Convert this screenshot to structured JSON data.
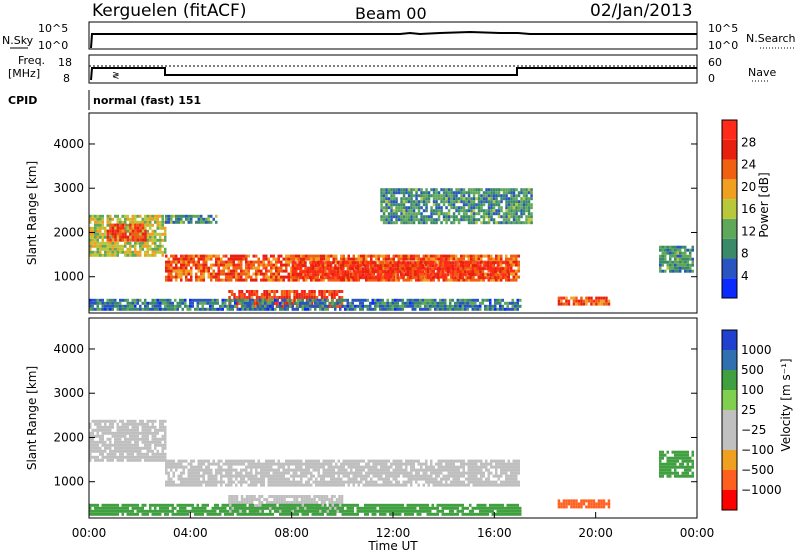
{
  "header": {
    "station": "Kerguelen (fitACF)",
    "beam": "Beam 00",
    "date": "02/Jan/2013"
  },
  "noise_panel": {
    "left_label": "N.Sky",
    "right_label": "N.Search",
    "y_ticks": [
      "10^5",
      "10^0"
    ]
  },
  "freq_panel": {
    "left_label_line1": "Freq.",
    "left_label_line2": "[MHz]",
    "left_ticks": [
      "18",
      "8"
    ],
    "right_ticks": [
      "60",
      "0"
    ],
    "right_label": "Nave"
  },
  "cpid_panel": {
    "label": "CPID",
    "value": "normal (fast) 151"
  },
  "colors": {
    "power": [
      "#0a2aff",
      "#2a55c0",
      "#3a8a6a",
      "#5fa85a",
      "#b8c83a",
      "#f0a020",
      "#f06010",
      "#e82010",
      "#ff2a1a"
    ],
    "velocity": [
      "#ff0000",
      "#ff6020",
      "#f0a020",
      "#c0c0c0",
      "#c0c0c0",
      "#80d050",
      "#40a040",
      "#3070b0",
      "#2040d0"
    ],
    "ground_scatter": "#bfbfbf"
  },
  "chart_data": [
    {
      "type": "heatmap",
      "name": "power_panel",
      "xlabel": "",
      "ylabel": "Slant Range [km]",
      "y_ticks": [
        "1000",
        "2000",
        "3000",
        "4000"
      ],
      "y_tick_values": [
        1000,
        2000,
        3000,
        4000
      ],
      "ylim": [
        180,
        4700
      ],
      "xlim": [
        0,
        24
      ],
      "colorbar_label": "Power [dB]",
      "colorbar_ticks": [
        "4",
        "8",
        "12",
        "16",
        "20",
        "24",
        "28"
      ],
      "colorbar_tick_values": [
        4,
        8,
        12,
        16,
        20,
        24,
        28
      ],
      "colorbar_range": [
        0,
        32
      ],
      "echo_regions": [
        {
          "t": [
            0.0,
            3.0
          ],
          "range_km": [
            1500,
            2400
          ],
          "power_db": 16
        },
        {
          "t": [
            0.7,
            2.2
          ],
          "range_km": [
            1800,
            2200
          ],
          "power_db": 26
        },
        {
          "t": [
            3.0,
            17.0
          ],
          "range_km": [
            900,
            1500
          ],
          "power_db": 24
        },
        {
          "t": [
            8.0,
            16.5
          ],
          "range_km": [
            1000,
            1350
          ],
          "power_db": 28
        },
        {
          "t": [
            5.5,
            10.0
          ],
          "range_km": [
            300,
            700
          ],
          "power_db": 26
        },
        {
          "t": [
            0.0,
            17.0
          ],
          "range_km": [
            250,
            500
          ],
          "power_db": 8
        },
        {
          "t": [
            3.0,
            5.0
          ],
          "range_km": [
            2200,
            2400
          ],
          "power_db": 10
        },
        {
          "t": [
            11.5,
            17.5
          ],
          "range_km": [
            2200,
            3000
          ],
          "power_db": 10
        },
        {
          "t": [
            18.5,
            20.5
          ],
          "range_km": [
            400,
            550
          ],
          "power_db": 24
        },
        {
          "t": [
            22.5,
            23.8
          ],
          "range_km": [
            1100,
            1700
          ],
          "power_db": 10
        }
      ]
    },
    {
      "type": "heatmap",
      "name": "velocity_panel",
      "xlabel": "Time UT",
      "ylabel": "Slant Range [km]",
      "x_ticks": [
        "00:00",
        "04:00",
        "08:00",
        "12:00",
        "16:00",
        "20:00",
        "00:00"
      ],
      "x_tick_values": [
        0,
        4,
        8,
        12,
        16,
        20,
        24
      ],
      "y_ticks": [
        "1000",
        "2000",
        "3000",
        "4000"
      ],
      "y_tick_values": [
        1000,
        2000,
        3000,
        4000
      ],
      "ylim": [
        180,
        4700
      ],
      "xlim": [
        0,
        24
      ],
      "colorbar_label": "Velocity [m s⁻¹]",
      "colorbar_ticks": [
        "1000",
        "500",
        "100",
        "25",
        "−25",
        "−100",
        "−500",
        "−1000"
      ],
      "echo_regions": [
        {
          "t": [
            0.0,
            3.0
          ],
          "range_km": [
            1500,
            2400
          ],
          "velocity": 0
        },
        {
          "t": [
            3.0,
            17.0
          ],
          "range_km": [
            900,
            1500
          ],
          "velocity": 0
        },
        {
          "t": [
            5.5,
            10.0
          ],
          "range_km": [
            300,
            700
          ],
          "velocity": 0
        },
        {
          "t": [
            0.0,
            17.0
          ],
          "range_km": [
            250,
            500
          ],
          "velocity": 150
        },
        {
          "t": [
            18.5,
            20.5
          ],
          "range_km": [
            400,
            600
          ],
          "velocity": -150
        },
        {
          "t": [
            22.5,
            23.8
          ],
          "range_km": [
            1100,
            1700
          ],
          "velocity": 200
        }
      ]
    }
  ]
}
